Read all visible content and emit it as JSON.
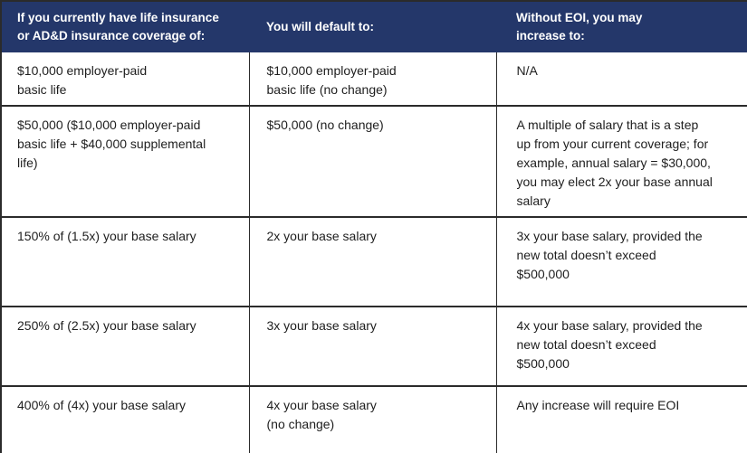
{
  "colors": {
    "header_bg": "#24376a",
    "header_text": "#ffffff",
    "body_text": "#1e1e1e",
    "border": "#2b2b2b",
    "row_bg": "#ffffff"
  },
  "table": {
    "headers": [
      "If you currently have life insurance\nor AD&D insurance coverage of:",
      "You will default to:",
      "Without EOI, you may\nincrease to:"
    ],
    "rows": [
      {
        "cells": [
          "$10,000 employer-paid\nbasic life",
          "$10,000 employer-paid\nbasic life (no change)",
          "N/A"
        ]
      },
      {
        "cells": [
          "$50,000 ($10,000 employer-paid\nbasic life + $40,000 supplemental\nlife)",
          "$50,000 (no change)",
          "A multiple of salary that is a step\nup from your current coverage; for\nexample, annual salary = $30,000,\nyou may elect 2x your base annual\nsalary"
        ]
      },
      {
        "cells": [
          "150% of (1.5x) your base salary",
          "2x your base salary",
          "3x your base salary, provided the\nnew total doesn’t exceed\n$500,000"
        ]
      },
      {
        "cells": [
          "250% of (2.5x) your base salary",
          "3x your base salary",
          "4x your base salary, provided the\nnew total doesn’t exceed\n$500,000"
        ]
      },
      {
        "cells": [
          "400% of (4x) your base salary",
          "4x your base salary\n(no change)",
          "Any increase will require EOI"
        ]
      }
    ]
  }
}
